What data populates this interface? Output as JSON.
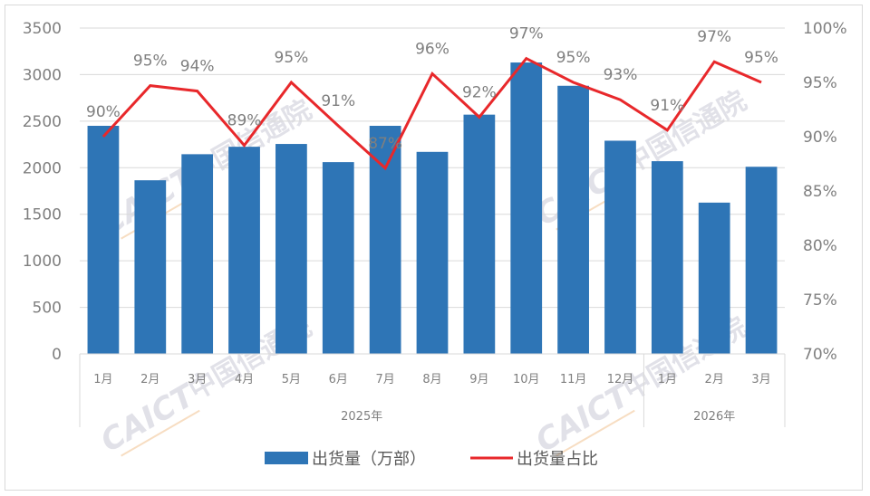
{
  "chart_data": {
    "type": "bar+line",
    "title": "",
    "categories": [
      "1月",
      "2月",
      "3月",
      "4月",
      "5月",
      "6月",
      "7月",
      "8月",
      "9月",
      "10月",
      "11月",
      "12月",
      "1月",
      "2月",
      "3月"
    ],
    "category_groups": [
      {
        "label": "2025年",
        "start": 0,
        "end": 11
      },
      {
        "label": "2026年",
        "start": 12,
        "end": 14
      }
    ],
    "series": [
      {
        "name": "出货量（万部）",
        "type": "bar",
        "axis": "left",
        "color": "#2e75b6",
        "values": [
          2450,
          1865,
          2145,
          2225,
          2255,
          2060,
          2450,
          2170,
          2570,
          3130,
          2880,
          2290,
          2070,
          1625,
          2010
        ]
      },
      {
        "name": "出货量占比",
        "type": "line",
        "axis": "right",
        "color": "#e8282b",
        "values": [
          90.0,
          94.7,
          94.2,
          89.2,
          95.0,
          91.0,
          87.1,
          95.8,
          91.8,
          97.2,
          95.0,
          93.4,
          90.6,
          96.9,
          95.0
        ],
        "data_labels": [
          "90%",
          "95%",
          "94%",
          "89%",
          "95%",
          "91%",
          "87%",
          "96%",
          "92%",
          "97%",
          "95%",
          "93%",
          "91%",
          "97%",
          "95%"
        ]
      }
    ],
    "left_axis": {
      "ylim": [
        0,
        3500
      ],
      "ticks": [
        "0",
        "500",
        "1000",
        "1500",
        "2000",
        "2500",
        "3000",
        "3500"
      ]
    },
    "right_axis": {
      "ylim": [
        70,
        100
      ],
      "ticks": [
        "70%",
        "75%",
        "80%",
        "85%",
        "90%",
        "95%",
        "100%"
      ]
    },
    "grid": true,
    "legend_position": "bottom",
    "xlabel": "",
    "ylabel": ""
  },
  "legend": {
    "bar_label": "出货量（万部）",
    "line_label": "出货量占比"
  },
  "watermark": {
    "text_en": "CAICT",
    "text_cn": "中国信通院"
  }
}
